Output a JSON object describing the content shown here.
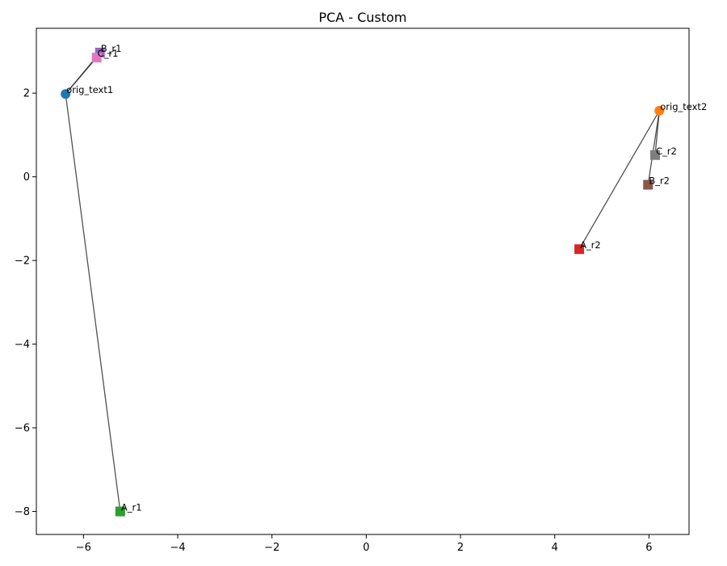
{
  "chart_data": {
    "type": "scatter",
    "title": "PCA - Custom",
    "xlabel": "",
    "ylabel": "",
    "xlim": [
      -7,
      6.85
    ],
    "ylim": [
      -8.55,
      3.55
    ],
    "xticks": [
      -6,
      -4,
      -2,
      0,
      2,
      4,
      6
    ],
    "yticks": [
      -8,
      -6,
      -4,
      -2,
      0,
      2
    ],
    "xtick_labels": [
      "−6",
      "−4",
      "−2",
      "0",
      "2",
      "4",
      "6"
    ],
    "ytick_labels": [
      "−8",
      "−6",
      "−4",
      "−2",
      "0",
      "2"
    ],
    "grid": false,
    "points": [
      {
        "label": "orig_text1",
        "x": -6.38,
        "y": 1.98,
        "marker": "circle",
        "color": "#1f77b4"
      },
      {
        "label": "orig_text2",
        "x": 6.22,
        "y": 1.58,
        "marker": "circle",
        "color": "#ff7f0e"
      },
      {
        "label": "A_r1",
        "x": -5.22,
        "y": -8.0,
        "marker": "square",
        "color": "#2ca02c"
      },
      {
        "label": "A_r2",
        "x": 4.52,
        "y": -1.73,
        "marker": "square",
        "color": "#d62728"
      },
      {
        "label": "B_r1",
        "x": -5.65,
        "y": 2.97,
        "marker": "square",
        "color": "#9467bd"
      },
      {
        "label": "B_r2",
        "x": 5.98,
        "y": -0.19,
        "marker": "square",
        "color": "#8c564b"
      },
      {
        "label": "C_r1",
        "x": -5.72,
        "y": 2.85,
        "marker": "square",
        "color": "#e377c2"
      },
      {
        "label": "C_r2",
        "x": 6.13,
        "y": 0.52,
        "marker": "square",
        "color": "#7f7f7f"
      }
    ],
    "connections": [
      {
        "from": "orig_text1",
        "to": "A_r1"
      },
      {
        "from": "orig_text1",
        "to": "B_r1"
      },
      {
        "from": "orig_text1",
        "to": "C_r1"
      },
      {
        "from": "orig_text2",
        "to": "A_r2"
      },
      {
        "from": "orig_text2",
        "to": "B_r2"
      },
      {
        "from": "orig_text2",
        "to": "C_r2"
      }
    ]
  }
}
